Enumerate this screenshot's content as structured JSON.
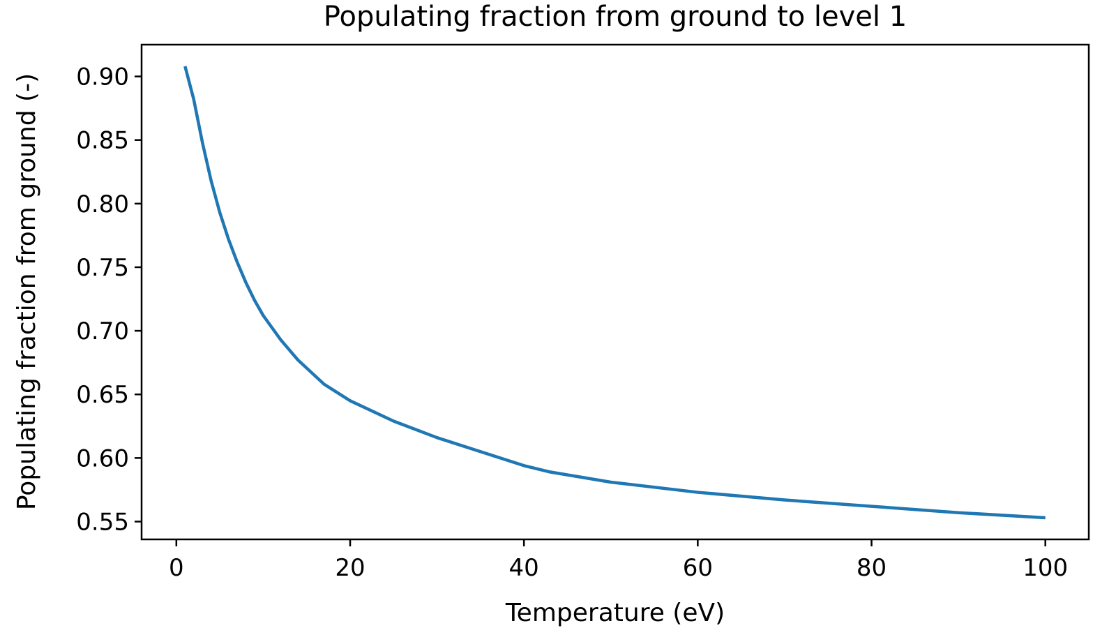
{
  "chart_data": {
    "type": "line",
    "title": "Populating fraction from ground to level 1",
    "xlabel": "Temperature (eV)",
    "ylabel": "Populating fraction from ground (-)",
    "xlim": [
      -4,
      105
    ],
    "ylim": [
      0.536,
      0.925
    ],
    "xticks": [
      0,
      20,
      40,
      60,
      80,
      100
    ],
    "xtick_labels": [
      "0",
      "20",
      "40",
      "60",
      "80",
      "100"
    ],
    "yticks": [
      0.55,
      0.6,
      0.65,
      0.7,
      0.75,
      0.8,
      0.85,
      0.9
    ],
    "ytick_labels": [
      "0.55",
      "0.60",
      "0.65",
      "0.70",
      "0.75",
      "0.80",
      "0.85",
      "0.90"
    ],
    "grid": false,
    "line_color": "#1f77b4",
    "series": [
      {
        "x": [
          1,
          2,
          3,
          4,
          5,
          6,
          7,
          8,
          9,
          10,
          12,
          14,
          17,
          20,
          25,
          30,
          35,
          40,
          43,
          50,
          60,
          70,
          80,
          90,
          100
        ],
        "y": [
          0.908,
          0.882,
          0.848,
          0.818,
          0.793,
          0.772,
          0.754,
          0.738,
          0.724,
          0.712,
          0.693,
          0.677,
          0.658,
          0.645,
          0.629,
          0.616,
          0.605,
          0.594,
          0.589,
          0.581,
          0.573,
          0.567,
          0.562,
          0.557,
          0.553
        ]
      }
    ]
  }
}
